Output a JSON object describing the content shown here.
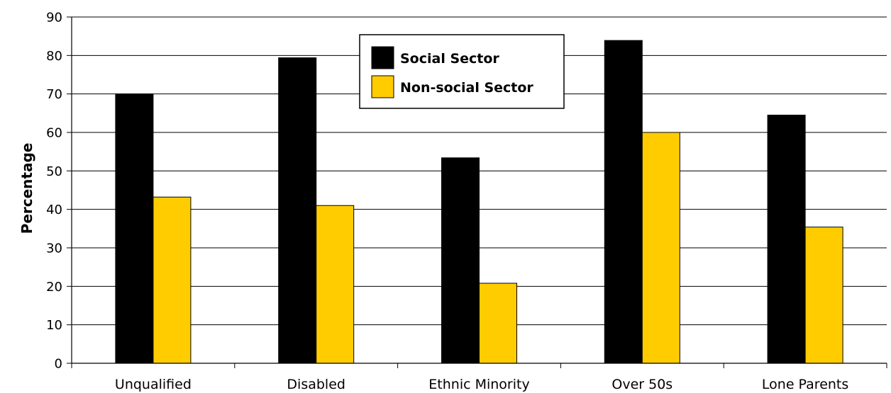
{
  "chart_data": {
    "type": "bar",
    "categories": [
      "Unqualified",
      "Disabled",
      "Ethnic Minority",
      "Over 50s",
      "Lone Parents"
    ],
    "series": [
      {
        "name": "Social Sector",
        "values": [
          70,
          79.4,
          53.4,
          83.9,
          64.5
        ],
        "color": "#000000"
      },
      {
        "name": "Non-social Sector",
        "values": [
          43.2,
          41,
          20.8,
          60,
          35.4
        ],
        "color": "#FFCC00"
      }
    ],
    "title": "",
    "xlabel": "",
    "ylabel": "Percentage",
    "ylim": [
      0,
      90
    ],
    "yticks": [
      0,
      10,
      20,
      30,
      40,
      50,
      60,
      70,
      80,
      90
    ],
    "grid": true,
    "legend": "top-center"
  }
}
